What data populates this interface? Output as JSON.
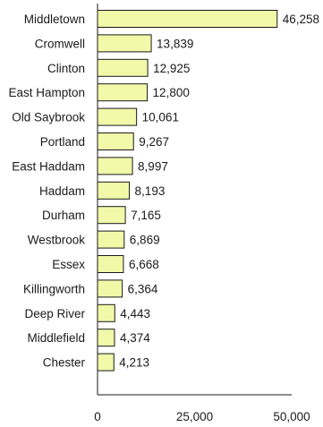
{
  "chart_data": {
    "type": "bar",
    "orientation": "horizontal",
    "title": "",
    "xlabel": "",
    "ylabel": "",
    "categories": [
      "Middletown",
      "Cromwell",
      "Clinton",
      "East Hampton",
      "Old Saybrook",
      "Portland",
      "East Haddam",
      "Haddam",
      "Durham",
      "Westbrook",
      "Essex",
      "Killingworth",
      "Deep River",
      "Middlefield",
      "Chester"
    ],
    "values": [
      46258,
      13839,
      12925,
      12800,
      10061,
      9267,
      8997,
      8193,
      7165,
      6869,
      6668,
      6364,
      4443,
      4374,
      4213
    ],
    "value_labels": [
      "46,258",
      "13,839",
      "12,925",
      "12,800",
      "10,061",
      "9,267",
      "8,997",
      "8,193",
      "7,165",
      "6,869",
      "6,668",
      "6,364",
      "4,443",
      "4,374",
      "4,213"
    ],
    "xlim": [
      0,
      50000
    ],
    "xticks": [
      0,
      25000,
      50000
    ],
    "xtick_labels": [
      "0",
      "25,000",
      "50,000"
    ],
    "grid": false,
    "legend": "none",
    "bar_fill": "#f1f8a8",
    "bar_stroke": "#1a1a1a"
  }
}
